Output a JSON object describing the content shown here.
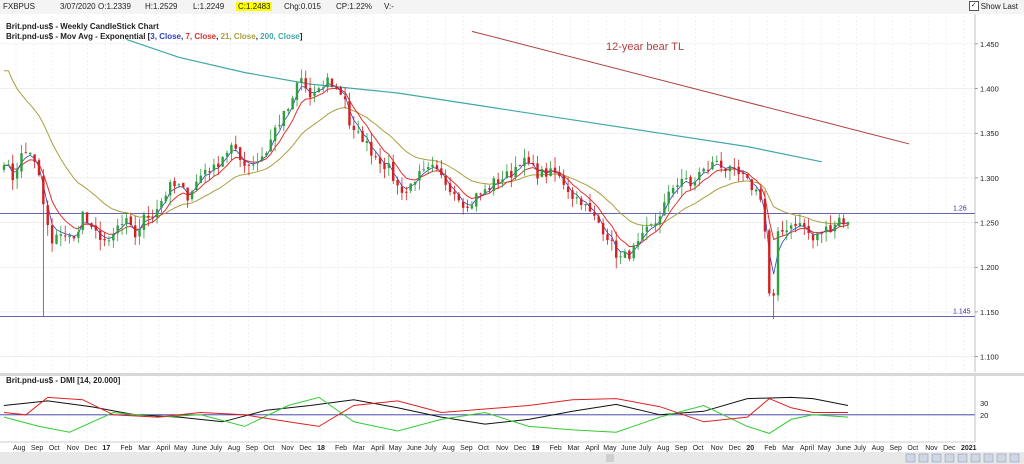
{
  "topbar": {
    "symbol": "FXBPUS",
    "date": "3/07/2020",
    "open": "O:1.2339",
    "high": "H:1.2529",
    "low": "L:1.2249",
    "close": "C:1.2483",
    "chg": "Chg:0.015",
    "cp": "CP:1.22%",
    "v": "V:-",
    "show_last": "Show Last"
  },
  "legend": {
    "line1": "Brit.pnd-us$ - Weekly CandleStick Chart",
    "ma_prefix": "Brit.pnd-us$ - Mov Avg - Exponential [",
    "ma3": "3, Close",
    "ma7": "7, Close",
    "ma21": "21, Close",
    "ma200": "200, Close",
    "ma_suffix": "]",
    "dmi": "Brit.pnd-us$ - DMI [14, 20.000]"
  },
  "annotation": "12-year bear TL",
  "colors": {
    "bull": "#2e9e3e",
    "bear": "#d42020",
    "ma3": "#3040c0",
    "ma7": "#e03030",
    "ma21": "#a8a040",
    "ma200": "#40a8a8",
    "trendline": "#b04040",
    "hline": "#3030a0",
    "adx": "#111111",
    "diplus": "#33cc33",
    "diminus": "#e02020"
  },
  "chart_data": {
    "type": "candlestick",
    "title": "Brit.pnd-us$ - Weekly CandleStick Chart",
    "ylim": [
      1.085,
      1.47
    ],
    "yticks": [
      "1.450",
      "1.400",
      "1.350",
      "1.300",
      "1.250",
      "1.200",
      "1.150",
      "1.100"
    ],
    "x_labels": [
      "Aug",
      "Sep",
      "Oct",
      "Nov",
      "Dec",
      "17",
      "Feb",
      "Mar",
      "April",
      "May",
      "June",
      "July",
      "Aug",
      "Sep",
      "Oct",
      "Nov",
      "Dec",
      "18",
      "Feb",
      "Mar",
      "April",
      "May",
      "June",
      "July",
      "Aug",
      "Sep",
      "Oct",
      "Nov",
      "Dec",
      "19",
      "Feb",
      "Mar",
      "April",
      "May",
      "June",
      "July",
      "Aug",
      "Sep",
      "Oct",
      "Nov",
      "Dec",
      "20",
      "Feb",
      "Mar",
      "April",
      "May",
      "June",
      "July",
      "Aug",
      "Sep",
      "Oct",
      "Nov",
      "Dec",
      "2021"
    ],
    "close_path": [
      [
        0,
        1.32
      ],
      [
        2,
        1.3
      ],
      [
        4,
        1.325
      ],
      [
        6,
        1.33
      ],
      [
        8,
        1.3
      ],
      [
        9,
        1.27
      ],
      [
        10,
        1.245
      ],
      [
        11,
        1.225
      ],
      [
        13,
        1.24
      ],
      [
        16,
        1.23
      ],
      [
        18,
        1.26
      ],
      [
        20,
        1.24
      ],
      [
        22,
        1.235
      ],
      [
        24,
        1.225
      ],
      [
        26,
        1.245
      ],
      [
        28,
        1.25
      ],
      [
        30,
        1.235
      ],
      [
        32,
        1.255
      ],
      [
        34,
        1.26
      ],
      [
        36,
        1.275
      ],
      [
        38,
        1.29
      ],
      [
        40,
        1.29
      ],
      [
        42,
        1.28
      ],
      [
        44,
        1.295
      ],
      [
        46,
        1.31
      ],
      [
        48,
        1.31
      ],
      [
        50,
        1.325
      ],
      [
        52,
        1.335
      ],
      [
        54,
        1.32
      ],
      [
        56,
        1.315
      ],
      [
        58,
        1.32
      ],
      [
        60,
        1.33
      ],
      [
        62,
        1.355
      ],
      [
        64,
        1.37
      ],
      [
        66,
        1.385
      ],
      [
        67,
        1.405
      ],
      [
        68,
        1.41
      ],
      [
        69,
        1.4
      ],
      [
        70,
        1.39
      ],
      [
        72,
        1.395
      ],
      [
        74,
        1.41
      ],
      [
        76,
        1.4
      ],
      [
        78,
        1.39
      ],
      [
        79,
        1.36
      ],
      [
        80,
        1.35
      ],
      [
        82,
        1.345
      ],
      [
        84,
        1.33
      ],
      [
        86,
        1.32
      ],
      [
        88,
        1.31
      ],
      [
        90,
        1.29
      ],
      [
        92,
        1.285
      ],
      [
        94,
        1.3
      ],
      [
        96,
        1.305
      ],
      [
        98,
        1.31
      ],
      [
        100,
        1.3
      ],
      [
        102,
        1.29
      ],
      [
        104,
        1.28
      ],
      [
        106,
        1.265
      ],
      [
        108,
        1.28
      ],
      [
        110,
        1.285
      ],
      [
        112,
        1.295
      ],
      [
        114,
        1.3
      ],
      [
        116,
        1.305
      ],
      [
        118,
        1.32
      ],
      [
        120,
        1.315
      ],
      [
        122,
        1.305
      ],
      [
        124,
        1.305
      ],
      [
        126,
        1.305
      ],
      [
        128,
        1.295
      ],
      [
        130,
        1.28
      ],
      [
        132,
        1.275
      ],
      [
        134,
        1.26
      ],
      [
        136,
        1.25
      ],
      [
        138,
        1.235
      ],
      [
        140,
        1.215
      ],
      [
        141,
        1.21
      ],
      [
        143,
        1.215
      ],
      [
        145,
        1.225
      ],
      [
        147,
        1.24
      ],
      [
        149,
        1.25
      ],
      [
        151,
        1.27
      ],
      [
        153,
        1.29
      ],
      [
        155,
        1.3
      ],
      [
        157,
        1.29
      ],
      [
        159,
        1.305
      ],
      [
        161,
        1.31
      ],
      [
        163,
        1.32
      ],
      [
        165,
        1.31
      ],
      [
        167,
        1.305
      ],
      [
        169,
        1.3
      ],
      [
        171,
        1.29
      ],
      [
        173,
        1.28
      ],
      [
        174,
        1.24
      ],
      [
        175,
        1.17
      ],
      [
        176,
        1.165
      ],
      [
        177,
        1.235
      ],
      [
        179,
        1.245
      ],
      [
        181,
        1.25
      ],
      [
        183,
        1.245
      ],
      [
        185,
        1.23
      ],
      [
        187,
        1.24
      ],
      [
        189,
        1.245
      ],
      [
        191,
        1.255
      ],
      [
        193,
        1.248
      ]
    ],
    "lower_shadow_extremes": [
      [
        9,
        1.145
      ],
      [
        176,
        1.142
      ]
    ],
    "ema200_path": [
      [
        28,
        1.455
      ],
      [
        40,
        1.435
      ],
      [
        55,
        1.418
      ],
      [
        70,
        1.405
      ],
      [
        90,
        1.395
      ],
      [
        110,
        1.38
      ],
      [
        130,
        1.365
      ],
      [
        150,
        1.35
      ],
      [
        170,
        1.335
      ],
      [
        187,
        1.318
      ]
    ],
    "horizontal_lines": [
      {
        "value": 1.26,
        "label": "1.26"
      },
      {
        "value": 1.145,
        "label": "1.145"
      }
    ],
    "trendline": {
      "label": "12-year bear TL",
      "from": [
        107,
        1.464
      ],
      "to": [
        207,
        1.338
      ]
    },
    "dmi": {
      "title": "Brit.pnd-us$ - DMI [14, 20.000]",
      "ylim": [
        0,
        50
      ],
      "yticks": [
        "30",
        "20"
      ],
      "threshold": 20,
      "adx": [
        [
          0,
          28
        ],
        [
          10,
          32
        ],
        [
          20,
          27
        ],
        [
          30,
          20
        ],
        [
          40,
          18
        ],
        [
          50,
          14
        ],
        [
          60,
          24
        ],
        [
          70,
          28
        ],
        [
          80,
          33
        ],
        [
          90,
          26
        ],
        [
          100,
          18
        ],
        [
          110,
          12
        ],
        [
          120,
          16
        ],
        [
          130,
          23
        ],
        [
          140,
          29
        ],
        [
          150,
          20
        ],
        [
          160,
          23
        ],
        [
          170,
          34
        ],
        [
          180,
          35
        ],
        [
          185,
          34
        ],
        [
          193,
          28
        ]
      ],
      "di_plus": [
        [
          0,
          18
        ],
        [
          8,
          10
        ],
        [
          15,
          5
        ],
        [
          25,
          22
        ],
        [
          35,
          18
        ],
        [
          45,
          20
        ],
        [
          55,
          10
        ],
        [
          65,
          28
        ],
        [
          72,
          35
        ],
        [
          80,
          14
        ],
        [
          90,
          6
        ],
        [
          100,
          16
        ],
        [
          110,
          22
        ],
        [
          120,
          10
        ],
        [
          130,
          7
        ],
        [
          140,
          5
        ],
        [
          150,
          18
        ],
        [
          160,
          28
        ],
        [
          170,
          10
        ],
        [
          175,
          4
        ],
        [
          180,
          16
        ],
        [
          185,
          20
        ],
        [
          193,
          18
        ]
      ],
      "di_minus": [
        [
          0,
          22
        ],
        [
          5,
          20
        ],
        [
          10,
          35
        ],
        [
          18,
          33
        ],
        [
          25,
          20
        ],
        [
          35,
          18
        ],
        [
          45,
          22
        ],
        [
          55,
          20
        ],
        [
          65,
          14
        ],
        [
          72,
          10
        ],
        [
          80,
          28
        ],
        [
          90,
          32
        ],
        [
          100,
          22
        ],
        [
          110,
          25
        ],
        [
          120,
          28
        ],
        [
          130,
          33
        ],
        [
          140,
          34
        ],
        [
          150,
          27
        ],
        [
          160,
          14
        ],
        [
          170,
          18
        ],
        [
          175,
          34
        ],
        [
          180,
          26
        ],
        [
          185,
          22
        ],
        [
          193,
          22
        ]
      ]
    }
  }
}
